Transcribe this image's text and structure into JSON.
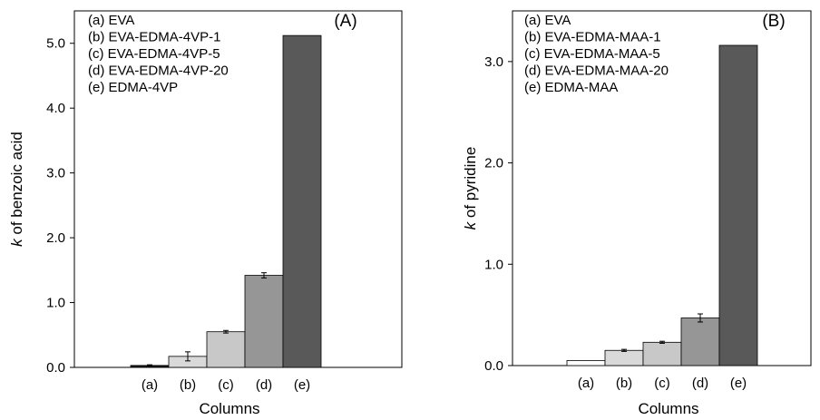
{
  "chart_data": [
    {
      "type": "bar",
      "panel_label": "(A)",
      "legend": [
        "(a) EVA",
        "(b) EVA-EDMA-4VP-1",
        "(c) EVA-EDMA-4VP-5",
        "(d) EVA-EDMA-4VP-20",
        "(e) EDMA-4VP"
      ],
      "categories": [
        "(a)",
        "(b)",
        "(c)",
        "(d)",
        "(e)"
      ],
      "values": [
        0.03,
        0.17,
        0.55,
        1.42,
        5.12
      ],
      "errors": [
        0.01,
        0.07,
        0.02,
        0.04,
        0.0
      ],
      "colors": [
        "#1a1a1a",
        "#d9d9d9",
        "#c8c8c8",
        "#969696",
        "#595959"
      ],
      "xlabel": "Columns",
      "ylabel_italic": "k",
      "ylabel_rest": " of benzoic acid",
      "ylim": [
        0,
        5.5
      ],
      "yticks": [
        0,
        1,
        2,
        3,
        4,
        5
      ],
      "ytick_labels": [
        "0.0",
        "1.0",
        "2.0",
        "3.0",
        "4.0",
        "5.0"
      ],
      "legend_position": "top-left",
      "grid": false
    },
    {
      "type": "bar",
      "panel_label": "(B)",
      "legend": [
        "(a) EVA",
        "(b) EVA-EDMA-MAA-1",
        "(c) EVA-EDMA-MAA-5",
        "(d) EVA-EDMA-MAA-20",
        "(e) EDMA-MAA"
      ],
      "categories": [
        "(a)",
        "(b)",
        "(c)",
        "(d)",
        "(e)"
      ],
      "values": [
        0.05,
        0.15,
        0.23,
        0.47,
        3.16
      ],
      "errors": [
        0.0,
        0.01,
        0.01,
        0.04,
        0.0
      ],
      "colors": [
        "#ffffff",
        "#d9d9d9",
        "#c8c8c8",
        "#969696",
        "#595959"
      ],
      "xlabel": "Columns",
      "ylabel_italic": "k",
      "ylabel_rest": " of pyridine",
      "ylim": [
        0,
        3.5
      ],
      "yticks": [
        0,
        1,
        2,
        3
      ],
      "ytick_labels": [
        "0.0",
        "1.0",
        "2.0",
        "3.0"
      ],
      "legend_position": "top-left",
      "grid": false
    }
  ]
}
